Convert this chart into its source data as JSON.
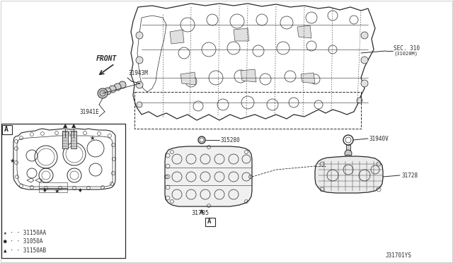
{
  "background_color": "#ffffff",
  "labels": {
    "front_arrow": "FRONT",
    "part_31943M": "31943M",
    "part_31941E": "31941E",
    "part_SEC310_line1": "SEC. 310",
    "part_SEC310_line2": "(31020M)",
    "part_315280": "315280",
    "part_31705": "31705",
    "part_31940V": "31940V",
    "part_31728": "31728",
    "legend_star": "★···31150AA",
    "legend_dot": "●···31050A",
    "legend_tri": "▲···31150AB",
    "callout_A": "A",
    "diagram_code": "J31701YS"
  },
  "line_color": "#2a2a2a",
  "text_color": "#2a2a2a"
}
